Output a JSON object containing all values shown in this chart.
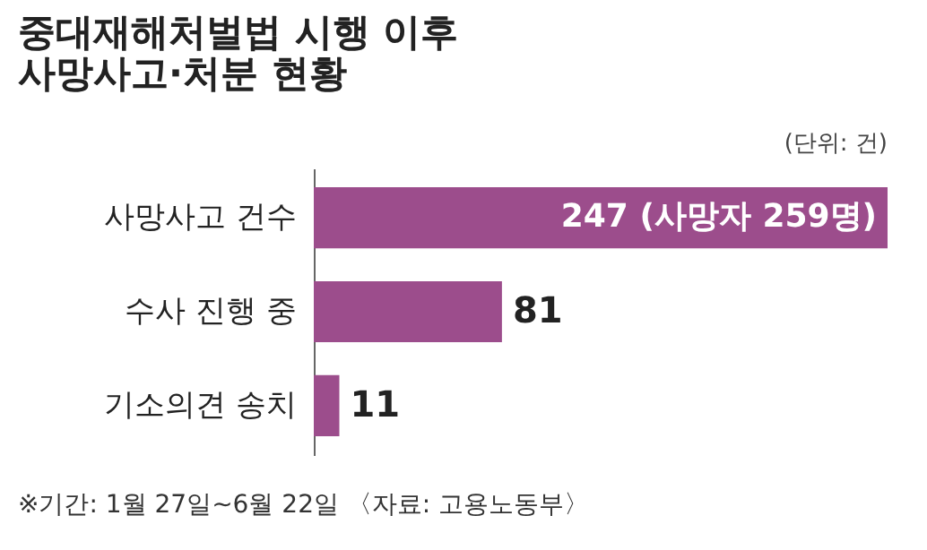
{
  "chart_data": {
    "type": "bar",
    "orientation": "horizontal",
    "title": [
      "중대재해처벌법 시행 이후",
      "사망사고·처분 현황"
    ],
    "categories": [
      "사망사고 건수",
      "수사 진행 중",
      "기소의견 송치"
    ],
    "values": [
      247,
      81,
      11
    ],
    "color": "#9c4d8c",
    "value_labels": [
      "247 (사망자 259명)",
      "81",
      "11"
    ],
    "annotations": [
      "(단위: 건)",
      "※기간: 1월 27일~6월 22일 〈자료: 고용노동부〉"
    ]
  }
}
